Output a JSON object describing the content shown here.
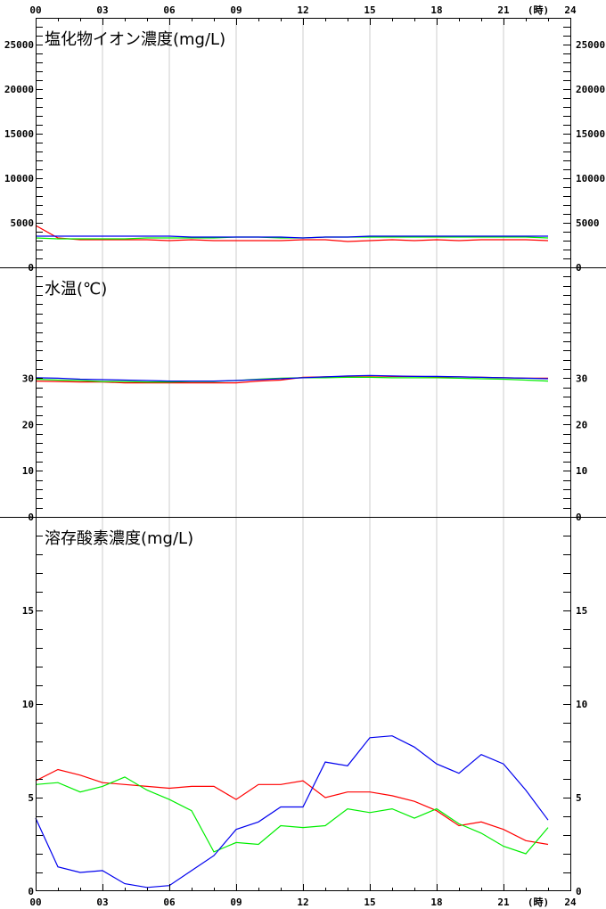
{
  "x_axis": {
    "ticks": [
      "00",
      "03",
      "06",
      "09",
      "12",
      "15",
      "18",
      "21",
      "24"
    ],
    "unit": "(時)"
  },
  "colors": {
    "red": "#ff0000",
    "green": "#00ee00",
    "blue": "#0000ee",
    "grid": "#cccccc",
    "axis": "#000000"
  },
  "chart_data": [
    {
      "type": "line",
      "title": "塩化物イオン濃度(mg/L)",
      "ylim": [
        0,
        28000
      ],
      "yticks": [
        0,
        5000,
        10000,
        15000,
        20000,
        25000
      ],
      "xlim": [
        0,
        24
      ],
      "x": [
        0,
        1,
        2,
        3,
        4,
        5,
        6,
        7,
        8,
        9,
        10,
        11,
        12,
        13,
        14,
        15,
        16,
        17,
        18,
        19,
        20,
        21,
        22,
        23
      ],
      "series": [
        {
          "color": "red",
          "values": [
            4700,
            3300,
            3100,
            3100,
            3100,
            3100,
            3000,
            3100,
            3000,
            3000,
            3000,
            3000,
            3100,
            3100,
            2900,
            3000,
            3100,
            3000,
            3100,
            3000,
            3100,
            3100,
            3100,
            3000
          ]
        },
        {
          "color": "green",
          "values": [
            3300,
            3200,
            3200,
            3200,
            3200,
            3300,
            3300,
            3300,
            3300,
            3400,
            3400,
            3300,
            3300,
            3400,
            3400,
            3400,
            3400,
            3400,
            3400,
            3400,
            3400,
            3400,
            3400,
            3300
          ]
        },
        {
          "color": "blue",
          "values": [
            3500,
            3500,
            3500,
            3500,
            3500,
            3500,
            3500,
            3400,
            3400,
            3400,
            3400,
            3400,
            3300,
            3400,
            3400,
            3500,
            3500,
            3500,
            3500,
            3500,
            3500,
            3500,
            3500,
            3500
          ]
        }
      ]
    },
    {
      "type": "line",
      "title": "水温(℃)",
      "ylim": [
        0,
        54
      ],
      "yticks": [
        0,
        10,
        20,
        30
      ],
      "xlim": [
        0,
        24
      ],
      "x": [
        0,
        1,
        2,
        3,
        4,
        5,
        6,
        7,
        8,
        9,
        10,
        11,
        12,
        13,
        14,
        15,
        16,
        17,
        18,
        19,
        20,
        21,
        22,
        23
      ],
      "series": [
        {
          "color": "red",
          "values": [
            29.4,
            29.3,
            29.2,
            29.2,
            29.0,
            29.0,
            29.0,
            29.0,
            29.0,
            29.0,
            29.4,
            29.6,
            30.2,
            30.3,
            30.4,
            30.5,
            30.4,
            30.4,
            30.3,
            30.3,
            30.2,
            30.1,
            30.0,
            30.0
          ]
        },
        {
          "color": "green",
          "values": [
            29.8,
            29.6,
            29.5,
            29.3,
            29.3,
            29.2,
            29.2,
            29.3,
            29.3,
            29.5,
            29.8,
            30.0,
            30.1,
            30.1,
            30.2,
            30.2,
            30.1,
            30.1,
            30.1,
            30.0,
            29.9,
            29.8,
            29.6,
            29.4
          ]
        },
        {
          "color": "blue",
          "values": [
            30.1,
            30.0,
            29.8,
            29.7,
            29.6,
            29.5,
            29.4,
            29.4,
            29.4,
            29.5,
            29.7,
            29.9,
            30.1,
            30.3,
            30.5,
            30.6,
            30.5,
            30.4,
            30.4,
            30.3,
            30.2,
            30.1,
            30.0,
            29.9
          ]
        }
      ]
    },
    {
      "type": "line",
      "title": "溶存酸素濃度(mg/L)",
      "ylim": [
        0,
        20
      ],
      "yticks": [
        0,
        5,
        10,
        15
      ],
      "xlim": [
        0,
        24
      ],
      "x": [
        0,
        1,
        2,
        3,
        4,
        5,
        6,
        7,
        8,
        9,
        10,
        11,
        12,
        13,
        14,
        15,
        16,
        17,
        18,
        19,
        20,
        21,
        22,
        23
      ],
      "series": [
        {
          "color": "red",
          "values": [
            5.9,
            6.5,
            6.2,
            5.8,
            5.7,
            5.6,
            5.5,
            5.6,
            5.6,
            4.9,
            5.7,
            5.7,
            5.9,
            5.0,
            5.3,
            5.3,
            5.1,
            4.8,
            4.3,
            3.5,
            3.7,
            3.3,
            2.7,
            2.5
          ]
        },
        {
          "color": "green",
          "values": [
            5.7,
            5.8,
            5.3,
            5.6,
            6.1,
            5.4,
            4.9,
            4.3,
            2.1,
            2.6,
            2.5,
            3.5,
            3.4,
            3.5,
            4.4,
            4.2,
            4.4,
            3.9,
            4.4,
            3.6,
            3.1,
            2.4,
            2.0,
            3.4
          ]
        },
        {
          "color": "blue",
          "values": [
            3.9,
            1.3,
            1.0,
            1.1,
            0.4,
            0.2,
            0.3,
            1.1,
            1.9,
            3.3,
            3.7,
            4.5,
            4.5,
            6.9,
            6.7,
            8.2,
            8.3,
            7.7,
            6.8,
            6.3,
            7.3,
            6.8,
            5.4,
            3.8
          ]
        }
      ]
    }
  ]
}
